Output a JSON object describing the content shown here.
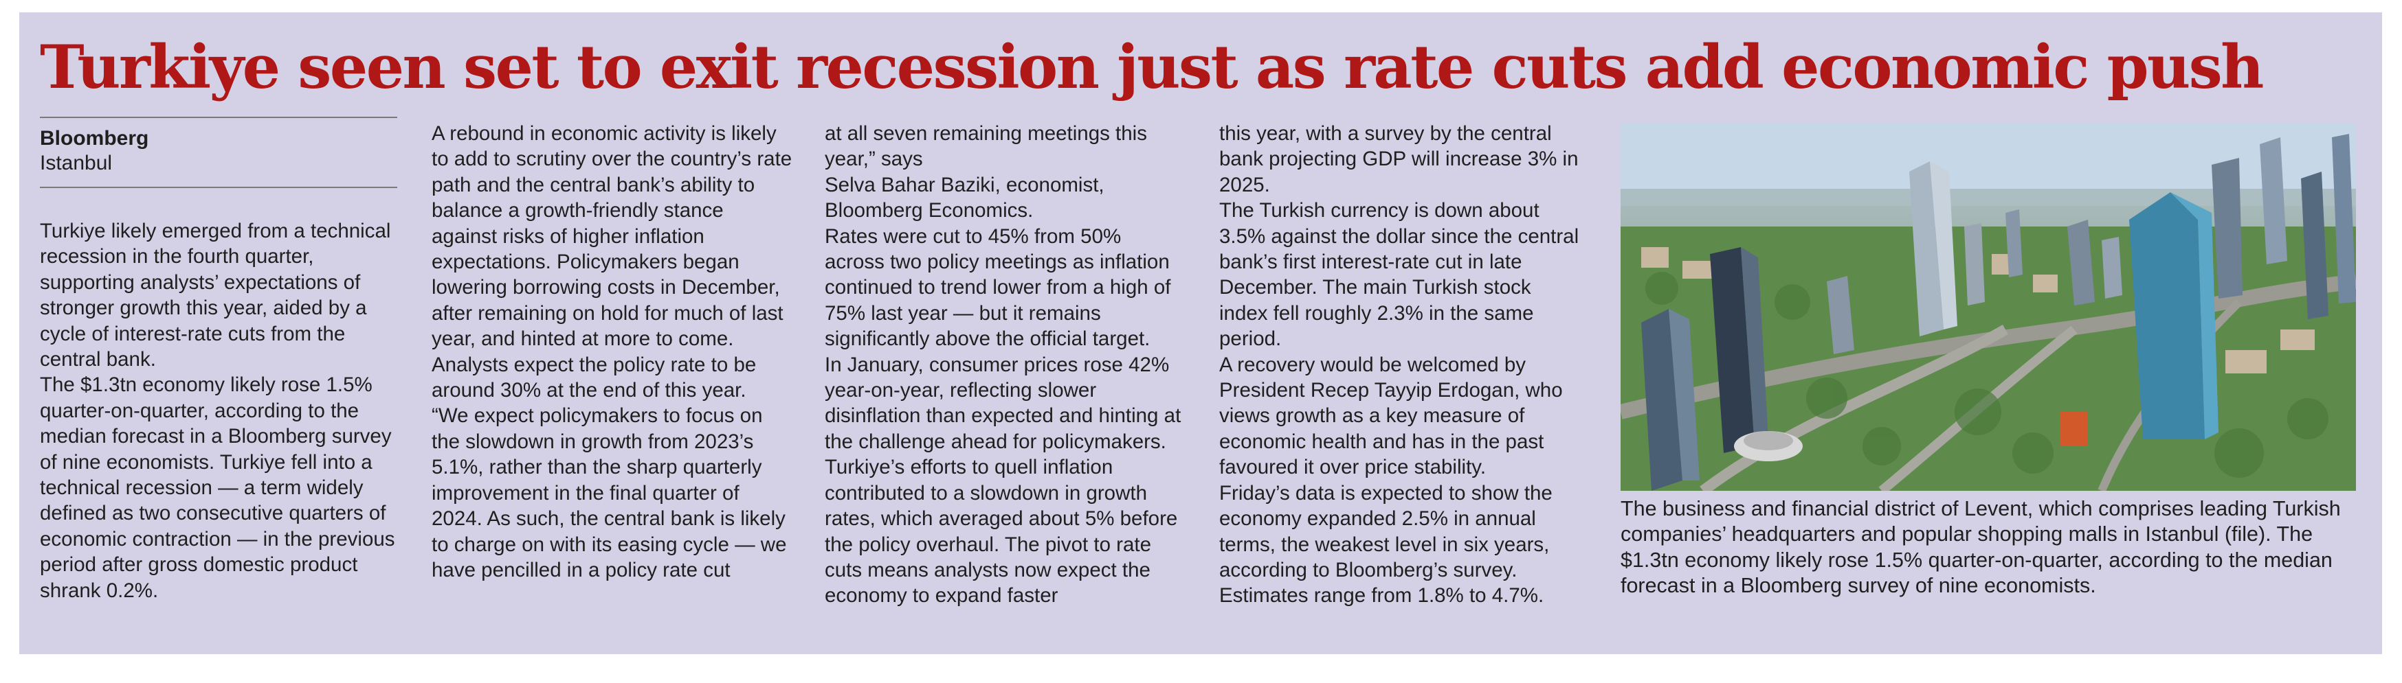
{
  "headline": "Turkiye seen set to exit recession just as rate cuts add economic push",
  "byline": {
    "name": "Bloomberg",
    "location": "Istanbul"
  },
  "columns": [
    {
      "paragraphs": [
        "Turkiye likely emerged from a technical recession in the fourth quarter, supporting analysts’ expectations of stronger growth this year, aided by a cycle of interest-rate cuts from the central bank.",
        "The $1.3tn economy likely rose 1.5% quarter-on-quarter, according to the median forecast in a Bloomberg survey of nine economists. Turkiye fell into a technical recession — a term widely defined as two consecutive quarters of economic contraction — in the previous period after gross domestic product shrank 0.2%."
      ]
    },
    {
      "paragraphs": [
        "A rebound in economic activity is likely to add to scrutiny over the country’s rate path and the central bank’s ability to balance a growth-friendly stance against risks of higher inflation expectations. Policymakers began lowering borrowing costs in December, after remaining on hold for much of last year, and hinted at more to come. Analysts expect the policy rate to be around 30% at the end of this year.",
        "“We expect policymakers to focus on the slowdown in growth from 2023’s 5.1%, rather than the sharp quarterly improvement in the final quarter of 2024. As such, the central bank is likely to charge on with its easing cycle — we have pencilled in a policy rate cut"
      ]
    },
    {
      "paragraphs": [
        "at all seven remaining meetings this year,” says",
        "Selva Bahar Baziki, economist, Bloomberg Economics.",
        "Rates were cut to 45% from 50% across two policy meetings as inflation continued to trend lower from a high of 75% last year — but it remains significantly above the official target.",
        "In January, consumer prices rose 42% year-on-year, reflecting slower disinflation than expected and hinting at the challenge ahead for policymakers.",
        "Turkiye’s efforts to quell inflation contributed to a slowdown in growth rates, which averaged about 5% before the policy overhaul. The pivot to rate cuts means analysts now expect the economy to expand faster"
      ]
    },
    {
      "paragraphs": [
        "this year, with a survey by the central bank projecting GDP will increase 3% in 2025.",
        "The Turkish currency is down about 3.5% against the dollar since the central bank’s first interest-rate cut in late December. The main Turkish stock index fell roughly 2.3% in the same period.",
        "A recovery would be welcomed by President Recep Tayyip Erdogan, who views growth as a key measure of economic health and has in the past favoured it over price stability.",
        "Friday’s data is expected to show the economy expanded 2.5% in annual terms, the weakest level in six years, according to Bloomberg’s survey. Estimates range from 1.8% to 4.7%."
      ]
    }
  ],
  "caption": "The business and financial district of Levent, which comprises leading Turkish companies’ headquarters and popular shopping malls in Istanbul (file). The $1.3tn economy likely rose 1.5% quarter-on-quarter, according to the median forecast in a Bloomberg survey of nine economists.",
  "colors": {
    "headline": "#b01717",
    "background": "#d4d1e6",
    "text": "#1f1f1f"
  }
}
